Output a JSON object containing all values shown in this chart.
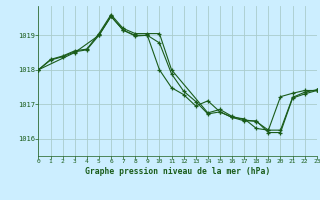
{
  "title": "Graphe pression niveau de la mer (hPa)",
  "bg_color": "#cceeff",
  "grid_color": "#aacccc",
  "line_color": "#1a5c1a",
  "xlim": [
    0,
    23
  ],
  "ylim": [
    1015.5,
    1019.85
  ],
  "yticks": [
    1016,
    1017,
    1018,
    1019
  ],
  "xticks": [
    0,
    1,
    2,
    3,
    4,
    5,
    6,
    7,
    8,
    9,
    10,
    11,
    12,
    13,
    14,
    15,
    16,
    17,
    18,
    19,
    20,
    21,
    22,
    23
  ],
  "series1_x": [
    0,
    1,
    2,
    3,
    4,
    5,
    6,
    7,
    8,
    9,
    10,
    11,
    14,
    15,
    16,
    17,
    18,
    19,
    20,
    21,
    22,
    23
  ],
  "series1_y": [
    1018.0,
    1018.3,
    1018.4,
    1018.55,
    1018.6,
    1019.05,
    1019.6,
    1019.2,
    1019.05,
    1019.05,
    1019.05,
    1018.0,
    1016.75,
    1016.85,
    1016.65,
    1016.55,
    1016.5,
    1016.25,
    1016.25,
    1017.2,
    1017.35,
    1017.42
  ],
  "series2_x": [
    0,
    1,
    2,
    3,
    4,
    5,
    6,
    7,
    8,
    9,
    10,
    11,
    12,
    13,
    14,
    15,
    16,
    17,
    18,
    19,
    20,
    21,
    22,
    23
  ],
  "series2_y": [
    1018.0,
    1018.28,
    1018.38,
    1018.52,
    1018.58,
    1019.0,
    1019.55,
    1019.15,
    1018.98,
    1019.0,
    1018.0,
    1017.48,
    1017.28,
    1016.95,
    1017.1,
    1016.78,
    1016.62,
    1016.58,
    1016.3,
    1016.25,
    1017.22,
    1017.32,
    1017.4,
    1017.4
  ],
  "series3_x": [
    0,
    3,
    5,
    6,
    7,
    8,
    9,
    10,
    11,
    12,
    13,
    14,
    15,
    16,
    17,
    18,
    19,
    20,
    21,
    22,
    23
  ],
  "series3_y": [
    1018.0,
    1018.5,
    1019.0,
    1019.55,
    1019.15,
    1019.0,
    1019.0,
    1018.78,
    1017.88,
    1017.38,
    1017.08,
    1016.72,
    1016.78,
    1016.62,
    1016.52,
    1016.52,
    1016.18,
    1016.18,
    1017.18,
    1017.3,
    1017.4
  ]
}
